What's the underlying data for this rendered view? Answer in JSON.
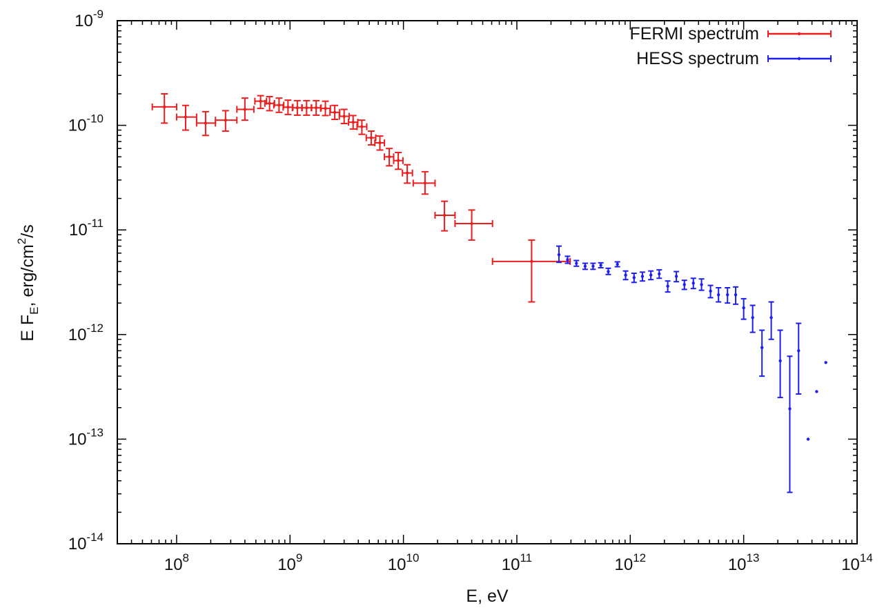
{
  "chart_data": {
    "type": "scatter",
    "title": "",
    "xlabel": "E, eV",
    "ylabel": "E F_E, erg/cm^2/s",
    "ylabel_parts": {
      "prefix": "E F",
      "sub": "E",
      "mid": ", erg/cm",
      "sup": "2",
      "suffix": "/s"
    },
    "x_scale": "log",
    "y_scale": "log",
    "xlim": [
      30000000.0,
      100000000000000.0
    ],
    "ylim": [
      1e-14,
      1e-09
    ],
    "x_ticks": [
      {
        "base": "10",
        "exp": "8",
        "value": 100000000.0
      },
      {
        "base": "10",
        "exp": "9",
        "value": 1000000000.0
      },
      {
        "base": "10",
        "exp": "10",
        "value": 10000000000.0
      },
      {
        "base": "10",
        "exp": "11",
        "value": 100000000000.0
      },
      {
        "base": "10",
        "exp": "12",
        "value": 1000000000000.0
      },
      {
        "base": "10",
        "exp": "13",
        "value": 10000000000000.0
      },
      {
        "base": "10",
        "exp": "14",
        "value": 100000000000000.0
      }
    ],
    "y_ticks": [
      {
        "base": "10",
        "exp": "-9",
        "value": 1e-09
      },
      {
        "base": "10",
        "exp": "-10",
        "value": 1e-10
      },
      {
        "base": "10",
        "exp": "-11",
        "value": 1e-11
      },
      {
        "base": "10",
        "exp": "-12",
        "value": 1e-12
      },
      {
        "base": "10",
        "exp": "-13",
        "value": 1e-13
      },
      {
        "base": "10",
        "exp": "-14",
        "value": 1e-14
      }
    ],
    "legend_position": "top-right",
    "grid": false,
    "series": [
      {
        "name": "FERMI spectrum",
        "color": "#ee1c1c",
        "points": [
          {
            "x": 78000000.0,
            "xmin": 61000000.0,
            "xmax": 100000000.0,
            "y": 1.5e-10,
            "ymin": 1.05e-10,
            "ymax": 2e-10
          },
          {
            "x": 120000000.0,
            "xmin": 100000000.0,
            "xmax": 150000000.0,
            "y": 1.2e-10,
            "ymin": 9e-11,
            "ymax": 1.55e-10
          },
          {
            "x": 180000000.0,
            "xmin": 150000000.0,
            "xmax": 220000000.0,
            "y": 1.05e-10,
            "ymin": 8e-11,
            "ymax": 1.35e-10
          },
          {
            "x": 270000000.0,
            "xmin": 220000000.0,
            "xmax": 340000000.0,
            "y": 1.12e-10,
            "ymin": 8.8e-11,
            "ymax": 1.38e-10
          },
          {
            "x": 400000000.0,
            "xmin": 340000000.0,
            "xmax": 480000000.0,
            "y": 1.42e-10,
            "ymin": 1.12e-10,
            "ymax": 1.82e-10
          },
          {
            "x": 550000000.0,
            "xmin": 490000000.0,
            "xmax": 620000000.0,
            "y": 1.7e-10,
            "ymin": 1.45e-10,
            "ymax": 1.92e-10
          },
          {
            "x": 660000000.0,
            "xmin": 600000000.0,
            "xmax": 730000000.0,
            "y": 1.62e-10,
            "ymin": 1.38e-10,
            "ymax": 1.88e-10
          },
          {
            "x": 800000000.0,
            "xmin": 720000000.0,
            "xmax": 880000000.0,
            "y": 1.56e-10,
            "ymin": 1.33e-10,
            "ymax": 1.82e-10
          },
          {
            "x": 960000000.0,
            "xmin": 870000000.0,
            "xmax": 1060000000.0,
            "y": 1.49e-10,
            "ymin": 1.27e-10,
            "ymax": 1.74e-10
          },
          {
            "x": 1160000000.0,
            "xmin": 1050000000.0,
            "xmax": 1280000000.0,
            "y": 1.47e-10,
            "ymin": 1.25e-10,
            "ymax": 1.72e-10
          },
          {
            "x": 1400000000.0,
            "xmin": 1270000000.0,
            "xmax": 1550000000.0,
            "y": 1.47e-10,
            "ymin": 1.25e-10,
            "ymax": 1.72e-10
          },
          {
            "x": 1700000000.0,
            "xmin": 1540000000.0,
            "xmax": 1880000000.0,
            "y": 1.47e-10,
            "ymin": 1.25e-10,
            "ymax": 1.72e-10
          },
          {
            "x": 2050000000.0,
            "xmin": 1860000000.0,
            "xmax": 2270000000.0,
            "y": 1.45e-10,
            "ymin": 1.24e-10,
            "ymax": 1.7e-10
          },
          {
            "x": 2480000000.0,
            "xmin": 2250000000.0,
            "xmax": 2740000000.0,
            "y": 1.33e-10,
            "ymin": 1.14e-10,
            "ymax": 1.55e-10
          },
          {
            "x": 3000000000.0,
            "xmin": 2720000000.0,
            "xmax": 3320000000.0,
            "y": 1.22e-10,
            "ymin": 1.04e-10,
            "ymax": 1.42e-10
          },
          {
            "x": 3600000000.0,
            "xmin": 3280000000.0,
            "xmax": 3960000000.0,
            "y": 1.07e-10,
            "ymin": 9.2e-11,
            "ymax": 1.24e-10
          },
          {
            "x": 4300000000.0,
            "xmin": 3900000000.0,
            "xmax": 4750000000.0,
            "y": 9.7e-11,
            "ymin": 8.2e-11,
            "ymax": 1.12e-10
          },
          {
            "x": 5200000000.0,
            "xmin": 4700000000.0,
            "xmax": 5700000000.0,
            "y": 7.6e-11,
            "ymin": 6.5e-11,
            "ymax": 8.8e-11
          },
          {
            "x": 6200000000.0,
            "xmin": 5600000000.0,
            "xmax": 6800000000.0,
            "y": 6.8e-11,
            "ymin": 5.8e-11,
            "ymax": 7.9e-11
          },
          {
            "x": 7500000000.0,
            "xmin": 6800000000.0,
            "xmax": 8200000000.0,
            "y": 5e-11,
            "ymin": 4.1e-11,
            "ymax": 6e-11
          },
          {
            "x": 9000000000.0,
            "xmin": 8200000000.0,
            "xmax": 9900000000.0,
            "y": 4.6e-11,
            "ymin": 3.8e-11,
            "ymax": 5.5e-11
          },
          {
            "x": 10800000000.0,
            "xmin": 9800000000.0,
            "xmax": 12000000000.0,
            "y": 3.5e-11,
            "ymin": 2.8e-11,
            "ymax": 4.2e-11
          },
          {
            "x": 15500000000.0,
            "xmin": 12200000000.0,
            "xmax": 19000000000.0,
            "y": 2.8e-11,
            "ymin": 2.2e-11,
            "ymax": 3.6e-11
          },
          {
            "x": 23000000000.0,
            "xmin": 19000000000.0,
            "xmax": 28500000000.0,
            "y": 1.38e-11,
            "ymin": 9.8e-12,
            "ymax": 1.88e-11
          },
          {
            "x": 40000000000.0,
            "xmin": 28500000000.0,
            "xmax": 61000000000.0,
            "y": 1.15e-11,
            "ymin": 8e-12,
            "ymax": 1.55e-11
          },
          {
            "x": 135000000000.0,
            "xmin": 61000000000.0,
            "xmax": 295000000000.0,
            "y": 5e-12,
            "ymin": 2.05e-12,
            "ymax": 8e-12
          }
        ]
      },
      {
        "name": "HESS spectrum",
        "color": "#1d1def",
        "points": [
          {
            "x": 235000000000.0,
            "y": 5.8e-12,
            "ymin": 4.9e-12,
            "ymax": 7e-12
          },
          {
            "x": 280000000000.0,
            "y": 5.2e-12,
            "ymin": 4.8e-12,
            "ymax": 5.6e-12
          },
          {
            "x": 335000000000.0,
            "y": 4.8e-12,
            "ymin": 4.5e-12,
            "ymax": 5.1e-12
          },
          {
            "x": 400000000000.0,
            "y": 4.5e-12,
            "ymin": 4.2e-12,
            "ymax": 4.8e-12
          },
          {
            "x": 470000000000.0,
            "y": 4.5e-12,
            "ymin": 4.2e-12,
            "ymax": 4.8e-12
          },
          {
            "x": 550000000000.0,
            "y": 4.6e-12,
            "ymin": 4.35e-12,
            "ymax": 4.85e-12
          },
          {
            "x": 640000000000.0,
            "y": 4e-12,
            "ymin": 3.75e-12,
            "ymax": 4.3e-12
          },
          {
            "x": 770000000000.0,
            "y": 4.7e-12,
            "ymin": 4.45e-12,
            "ymax": 4.95e-12
          },
          {
            "x": 910000000000.0,
            "y": 3.7e-12,
            "ymin": 3.35e-12,
            "ymax": 4.05e-12
          },
          {
            "x": 1080000000000.0,
            "y": 3.5e-12,
            "ymin": 3.15e-12,
            "ymax": 3.85e-12
          },
          {
            "x": 1280000000000.0,
            "y": 3.6e-12,
            "ymin": 3.25e-12,
            "ymax": 3.95e-12
          },
          {
            "x": 1520000000000.0,
            "y": 3.7e-12,
            "ymin": 3.35e-12,
            "ymax": 4.05e-12
          },
          {
            "x": 1800000000000.0,
            "y": 3.8e-12,
            "ymin": 3.45e-12,
            "ymax": 4.15e-12
          },
          {
            "x": 2140000000000.0,
            "y": 2.9e-12,
            "ymin": 2.55e-12,
            "ymax": 3.25e-12
          },
          {
            "x": 2550000000000.0,
            "y": 3.6e-12,
            "ymin": 3.2e-12,
            "ymax": 4e-12
          },
          {
            "x": 3000000000000.0,
            "y": 3e-12,
            "ymin": 2.7e-12,
            "ymax": 3.3e-12
          },
          {
            "x": 3600000000000.0,
            "y": 3.1e-12,
            "ymin": 2.75e-12,
            "ymax": 3.45e-12
          },
          {
            "x": 4250000000000.0,
            "y": 3e-12,
            "ymin": 2.65e-12,
            "ymax": 3.4e-12
          },
          {
            "x": 5100000000000.0,
            "y": 2.6e-12,
            "ymin": 2.25e-12,
            "ymax": 2.95e-12
          },
          {
            "x": 6000000000000.0,
            "y": 2.4e-12,
            "ymin": 2.05e-12,
            "ymax": 2.8e-12
          },
          {
            "x": 7200000000000.0,
            "y": 2.4e-12,
            "ymin": 2e-12,
            "ymax": 2.8e-12
          },
          {
            "x": 8500000000000.0,
            "y": 2.4e-12,
            "ymin": 1.95e-12,
            "ymax": 2.85e-12
          },
          {
            "x": 10000000000000.0,
            "y": 1.8e-12,
            "ymin": 1.4e-12,
            "ymax": 2.2e-12
          },
          {
            "x": 12000000000000.0,
            "y": 1.45e-12,
            "ymin": 1.05e-12,
            "ymax": 1.9e-12
          },
          {
            "x": 14500000000000.0,
            "y": 7.5e-13,
            "ymin": 4e-13,
            "ymax": 1.1e-12
          },
          {
            "x": 17500000000000.0,
            "y": 1.45e-12,
            "ymin": 9e-13,
            "ymax": 2.05e-12
          },
          {
            "x": 21000000000000.0,
            "y": 5.6e-13,
            "ymin": 2.5e-13,
            "ymax": 1.1e-12
          },
          {
            "x": 25500000000000.0,
            "y": 1.95e-13,
            "ymin": 3.1e-14,
            "ymax": 6.2e-13
          },
          {
            "x": 30500000000000.0,
            "y": 7e-13,
            "ymin": 2.7e-13,
            "ymax": 1.28e-12
          },
          {
            "x": 37000000000000.0,
            "y": 1e-13,
            "ymin": 1e-13,
            "ymax": 1e-13
          },
          {
            "x": 44000000000000.0,
            "y": 2.85e-13,
            "ymin": 2.85e-13,
            "ymax": 2.85e-13
          },
          {
            "x": 53000000000000.0,
            "y": 5.4e-13,
            "ymin": 5.4e-13,
            "ymax": 5.4e-13
          }
        ]
      }
    ]
  }
}
